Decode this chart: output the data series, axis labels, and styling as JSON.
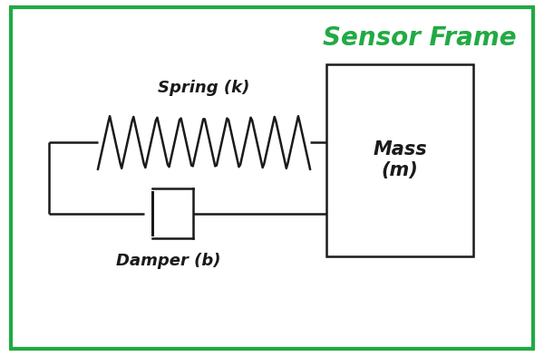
{
  "bg_color": "#ffffff",
  "border_color": "#22aa44",
  "line_color": "#1a1a1a",
  "title_text": "Sensor Frame",
  "title_color": "#22aa44",
  "spring_label": "Spring (k)",
  "damper_label": "Damper (b)",
  "mass_label": "Mass\n(m)",
  "title_fontsize": 20,
  "label_fontsize": 13,
  "mass_fontsize": 15,
  "fig_width": 6.0,
  "fig_height": 3.93,
  "dpi": 100
}
